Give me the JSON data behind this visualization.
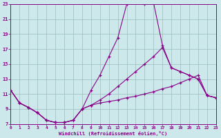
{
  "xlabel": "Windchill (Refroidissement éolien,°C)",
  "background_color": "#cce8ea",
  "line_color": "#880088",
  "grid_color": "#99bbbb",
  "xmin": 0,
  "xmax": 23,
  "ymin": 7,
  "ymax": 23,
  "yticks": [
    7,
    9,
    11,
    13,
    15,
    17,
    19,
    21,
    23
  ],
  "xticks": [
    0,
    1,
    2,
    3,
    4,
    5,
    6,
    7,
    8,
    9,
    10,
    11,
    12,
    13,
    14,
    15,
    16,
    17,
    18,
    19,
    20,
    21,
    22,
    23
  ],
  "line1_x": [
    0,
    1,
    2,
    3,
    4,
    5,
    6,
    7,
    8,
    9,
    10,
    11,
    12,
    13,
    14,
    15,
    16,
    17,
    18,
    19,
    20,
    21,
    22,
    23
  ],
  "line1_y": [
    11.5,
    9.8,
    9.2,
    8.5,
    7.5,
    7.2,
    7.2,
    7.5,
    9.0,
    11.5,
    13.5,
    16.0,
    18.5,
    23.0,
    23.2,
    23.0,
    23.2,
    17.5,
    14.5,
    14.0,
    13.5,
    13.0,
    10.8,
    10.5
  ],
  "line2_x": [
    0,
    1,
    2,
    3,
    4,
    5,
    6,
    7,
    8,
    9,
    10,
    11,
    12,
    13,
    14,
    15,
    16,
    17,
    18,
    19,
    20,
    21,
    22,
    23
  ],
  "line2_y": [
    11.5,
    9.8,
    9.2,
    8.5,
    7.5,
    7.2,
    7.2,
    7.5,
    9.0,
    9.5,
    10.2,
    11.0,
    12.0,
    13.0,
    14.0,
    15.0,
    16.0,
    17.2,
    14.5,
    14.0,
    13.5,
    13.0,
    10.8,
    10.5
  ],
  "line3_x": [
    0,
    1,
    2,
    3,
    4,
    5,
    6,
    7,
    8,
    9,
    10,
    11,
    12,
    13,
    14,
    15,
    16,
    17,
    18,
    19,
    20,
    21,
    22,
    23
  ],
  "line3_y": [
    11.5,
    9.8,
    9.2,
    8.5,
    7.5,
    7.2,
    7.2,
    7.5,
    9.0,
    9.5,
    9.8,
    10.0,
    10.2,
    10.5,
    10.7,
    11.0,
    11.3,
    11.7,
    12.0,
    12.5,
    13.0,
    13.5,
    10.8,
    10.5
  ]
}
